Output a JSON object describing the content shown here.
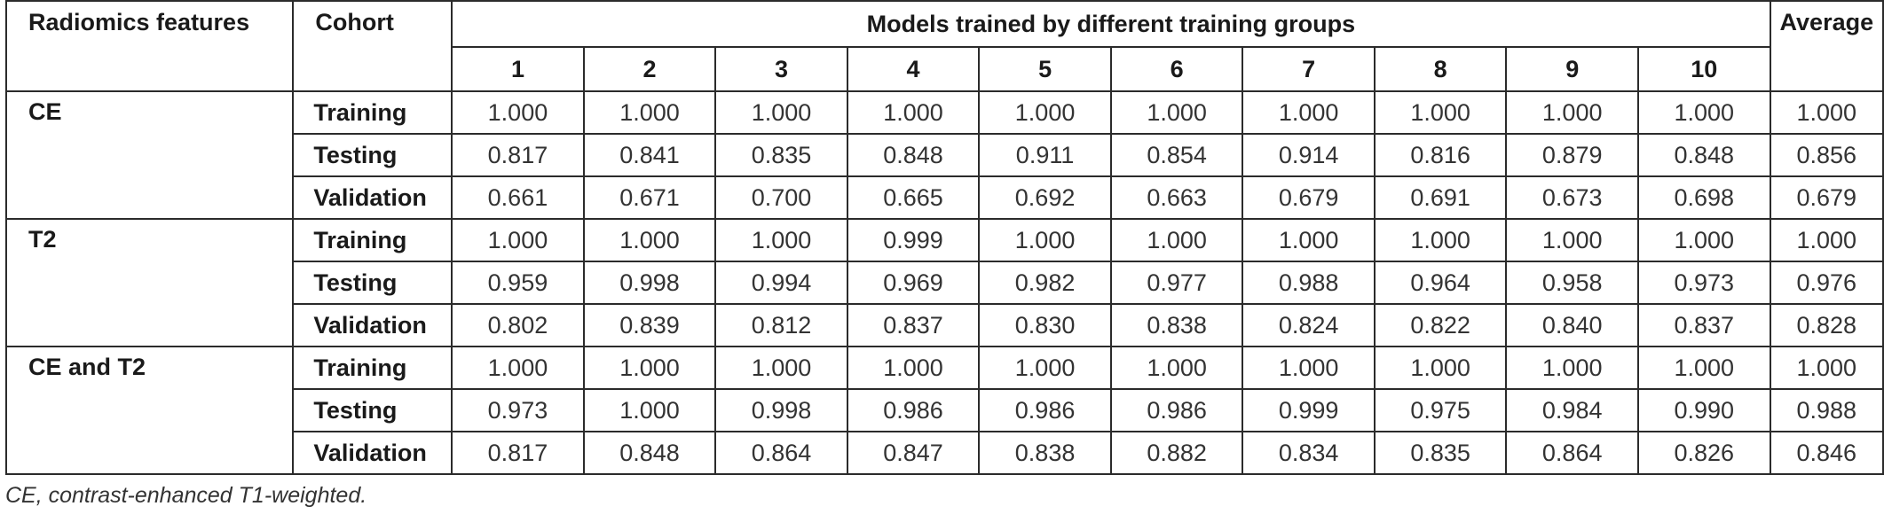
{
  "table": {
    "header": {
      "features_label": "Radiomics features",
      "cohort_label": "Cohort",
      "group_label": "Models trained by different training groups",
      "average_label": "Average",
      "group_numbers": [
        "1",
        "2",
        "3",
        "4",
        "5",
        "6",
        "7",
        "8",
        "9",
        "10"
      ]
    },
    "groups": [
      {
        "feature": "CE",
        "rows": [
          {
            "cohort": "Training",
            "values": [
              "1.000",
              "1.000",
              "1.000",
              "1.000",
              "1.000",
              "1.000",
              "1.000",
              "1.000",
              "1.000",
              "1.000"
            ],
            "average": "1.000"
          },
          {
            "cohort": "Testing",
            "values": [
              "0.817",
              "0.841",
              "0.835",
              "0.848",
              "0.911",
              "0.854",
              "0.914",
              "0.816",
              "0.879",
              "0.848"
            ],
            "average": "0.856"
          },
          {
            "cohort": "Validation",
            "values": [
              "0.661",
              "0.671",
              "0.700",
              "0.665",
              "0.692",
              "0.663",
              "0.679",
              "0.691",
              "0.673",
              "0.698"
            ],
            "average": "0.679"
          }
        ]
      },
      {
        "feature": "T2",
        "rows": [
          {
            "cohort": "Training",
            "values": [
              "1.000",
              "1.000",
              "1.000",
              "0.999",
              "1.000",
              "1.000",
              "1.000",
              "1.000",
              "1.000",
              "1.000"
            ],
            "average": "1.000"
          },
          {
            "cohort": "Testing",
            "values": [
              "0.959",
              "0.998",
              "0.994",
              "0.969",
              "0.982",
              "0.977",
              "0.988",
              "0.964",
              "0.958",
              "0.973"
            ],
            "average": "0.976"
          },
          {
            "cohort": "Validation",
            "values": [
              "0.802",
              "0.839",
              "0.812",
              "0.837",
              "0.830",
              "0.838",
              "0.824",
              "0.822",
              "0.840",
              "0.837"
            ],
            "average": "0.828"
          }
        ]
      },
      {
        "feature": "CE and T2",
        "rows": [
          {
            "cohort": "Training",
            "values": [
              "1.000",
              "1.000",
              "1.000",
              "1.000",
              "1.000",
              "1.000",
              "1.000",
              "1.000",
              "1.000",
              "1.000"
            ],
            "average": "1.000"
          },
          {
            "cohort": "Testing",
            "values": [
              "0.973",
              "1.000",
              "0.998",
              "0.986",
              "0.986",
              "0.986",
              "0.999",
              "0.975",
              "0.984",
              "0.990"
            ],
            "average": "0.988"
          },
          {
            "cohort": "Validation",
            "values": [
              "0.817",
              "0.848",
              "0.864",
              "0.847",
              "0.838",
              "0.882",
              "0.834",
              "0.835",
              "0.864",
              "0.826"
            ],
            "average": "0.846"
          }
        ]
      }
    ]
  },
  "footnote": "CE, contrast-enhanced T1-weighted."
}
